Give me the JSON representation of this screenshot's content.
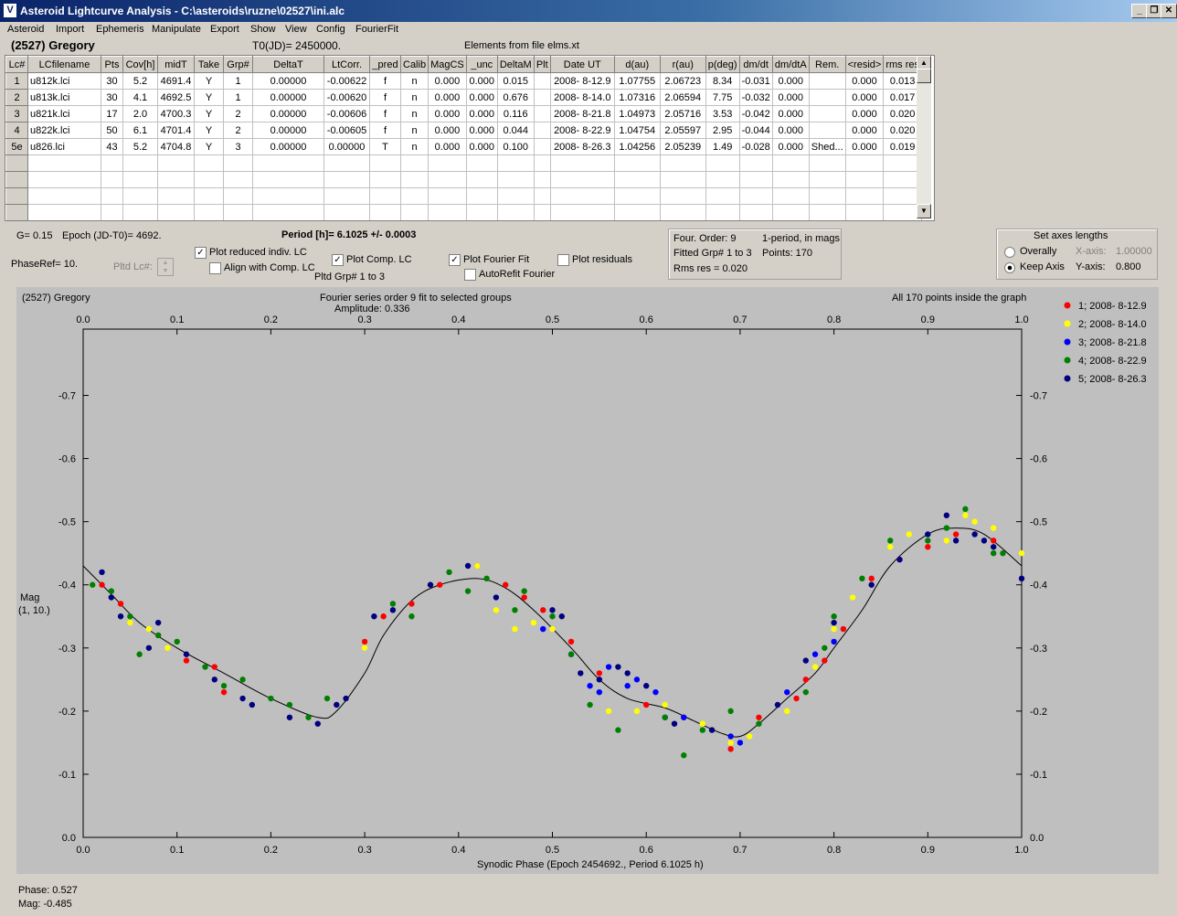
{
  "window": {
    "title": "Asteroid Lightcurve Analysis - C:\\asteroids\\ruzne\\02527\\ini.alc",
    "icon": "app-icon"
  },
  "menu": [
    "Asteroid",
    "Import",
    "Ephemeris",
    "Manipulate",
    "Export",
    "Show",
    "View",
    "Config",
    "FourierFit"
  ],
  "header": {
    "asteroid": "(2527) Gregory",
    "t0": "T0(JD)= 2450000.",
    "elements": "Elements from file elms.xt"
  },
  "table": {
    "columns": [
      "Lc#",
      "LCfilename",
      "Pts",
      "Cov[h]",
      "midT",
      "Take",
      "Grp#",
      "DeltaT",
      "LtCorr.",
      "_pred",
      "Calib",
      "MagCS",
      "_unc",
      "DeltaM",
      "Plt",
      "Date UT",
      "d(au)",
      "r(au)",
      "p(deg)",
      "dm/dt",
      "dm/dtA",
      "Rem.",
      "<resid>",
      "rms res"
    ],
    "rows": [
      [
        "1",
        "u812k.lci",
        "30",
        "5.2",
        "4691.4",
        "Y",
        "1",
        "0.00000",
        "-0.00622",
        "f",
        "n",
        "0.000",
        "0.000",
        "0.015",
        "",
        "2008- 8-12.9",
        "1.07755",
        "2.06723",
        "8.34",
        "-0.031",
        "0.000",
        "",
        "0.000",
        "0.013"
      ],
      [
        "2",
        "u813k.lci",
        "30",
        "4.1",
        "4692.5",
        "Y",
        "1",
        "0.00000",
        "-0.00620",
        "f",
        "n",
        "0.000",
        "0.000",
        "0.676",
        "",
        "2008- 8-14.0",
        "1.07316",
        "2.06594",
        "7.75",
        "-0.032",
        "0.000",
        "",
        "0.000",
        "0.017"
      ],
      [
        "3",
        "u821k.lci",
        "17",
        "2.0",
        "4700.3",
        "Y",
        "2",
        "0.00000",
        "-0.00606",
        "f",
        "n",
        "0.000",
        "0.000",
        "0.116",
        "",
        "2008- 8-21.8",
        "1.04973",
        "2.05716",
        "3.53",
        "-0.042",
        "0.000",
        "",
        "0.000",
        "0.020"
      ],
      [
        "4",
        "u822k.lci",
        "50",
        "6.1",
        "4701.4",
        "Y",
        "2",
        "0.00000",
        "-0.00605",
        "f",
        "n",
        "0.000",
        "0.000",
        "0.044",
        "",
        "2008- 8-22.9",
        "1.04754",
        "2.05597",
        "2.95",
        "-0.044",
        "0.000",
        "",
        "0.000",
        "0.020"
      ],
      [
        "5e",
        "u826.lci",
        "43",
        "5.2",
        "4704.8",
        "Y",
        "3",
        "0.00000",
        "0.00000",
        "T",
        "n",
        "0.000",
        "0.000",
        "0.100",
        "",
        "2008- 8-26.3",
        "1.04256",
        "2.05239",
        "1.49",
        "-0.028",
        "0.000",
        "Shed...",
        "0.000",
        "0.019"
      ]
    ],
    "empty_rows": 4
  },
  "controls": {
    "g": "G= 0.15",
    "epoch": "Epoch (JD-T0)= 4692.",
    "period": "Period [h]= 6.1025 +/- 0.0003",
    "phaseref": "PhaseRef= 10.",
    "pltd_lc": "Pltd Lc#:",
    "plot_reduced": "Plot reduced indiv. LC",
    "align_comp": "Align with Comp. LC",
    "plot_comp": "Plot Comp. LC",
    "pltd_grp": "Pltd Grp#  1   to   3",
    "plot_fourier": "Plot Fourier Fit",
    "autorefit": "AutoRefit Fourier",
    "plot_residuals": "Plot residuals",
    "fourier_box": {
      "order": "Four. Order:  9",
      "mode": "1-period, in mags",
      "fitted": "Fitted Grp# 1 to 3",
      "points": "Points: 170",
      "rms": "Rms res      = 0.020"
    },
    "axes_box": {
      "title": "Set axes lengths",
      "overally": "Overally",
      "keep": "Keep Axis",
      "xaxis_label": "X-axis:",
      "xaxis_val": "1.00000",
      "yaxis_label": "Y-axis:",
      "yaxis_val": "0.800"
    }
  },
  "plot_text": {
    "name": "(2527) Gregory",
    "fourier_line": "Fourier series order 9 fit to selected groups",
    "amplitude": "Amplitude: 0.336",
    "inside": "All 170 points inside the graph",
    "ylabel1": "Mag",
    "ylabel2": "(1, 10.)",
    "xlabel": "Synodic Phase (Epoch 2454692., Period 6.1025 h)"
  },
  "status": {
    "phase": "Phase:  0.527",
    "mag": "Mag:    -0.485"
  },
  "colors": {
    "g1": "#ff0000",
    "g2": "#ffff00",
    "g3": "#0000ff",
    "g4": "#008000",
    "g5": "#000080"
  },
  "chart_data": {
    "type": "scatter",
    "xlim": [
      0,
      1
    ],
    "ylim": [
      0.0,
      -0.8
    ],
    "xticks": [
      "0.0",
      "0.1",
      "0.2",
      "0.3",
      "0.4",
      "0.5",
      "0.6",
      "0.7",
      "0.8",
      "0.9",
      "1.0"
    ],
    "yticks": [
      "-0.7",
      "-0.6",
      "-0.5",
      "-0.4",
      "-0.3",
      "-0.2",
      "-0.1",
      "0.0"
    ],
    "xlabel": "Synodic Phase (Epoch 2454692., Period 6.1025 h)",
    "ylabel": "Mag",
    "legend": [
      "1; 2008- 8-12.9",
      "2; 2008- 8-14.0",
      "3; 2008- 8-21.8",
      "4; 2008- 8-22.9",
      "5; 2008- 8-26.3"
    ],
    "legend_position": "right",
    "fit_curve": [
      [
        0.0,
        -0.43
      ],
      [
        0.03,
        -0.385
      ],
      [
        0.06,
        -0.34
      ],
      [
        0.1,
        -0.3
      ],
      [
        0.15,
        -0.26
      ],
      [
        0.2,
        -0.22
      ],
      [
        0.25,
        -0.19
      ],
      [
        0.27,
        -0.2
      ],
      [
        0.3,
        -0.26
      ],
      [
        0.32,
        -0.32
      ],
      [
        0.35,
        -0.375
      ],
      [
        0.38,
        -0.4
      ],
      [
        0.42,
        -0.41
      ],
      [
        0.45,
        -0.395
      ],
      [
        0.48,
        -0.36
      ],
      [
        0.52,
        -0.3
      ],
      [
        0.55,
        -0.25
      ],
      [
        0.58,
        -0.22
      ],
      [
        0.62,
        -0.205
      ],
      [
        0.65,
        -0.185
      ],
      [
        0.68,
        -0.165
      ],
      [
        0.7,
        -0.16
      ],
      [
        0.72,
        -0.18
      ],
      [
        0.75,
        -0.22
      ],
      [
        0.78,
        -0.26
      ],
      [
        0.8,
        -0.3
      ],
      [
        0.83,
        -0.36
      ],
      [
        0.86,
        -0.43
      ],
      [
        0.9,
        -0.48
      ],
      [
        0.93,
        -0.49
      ],
      [
        0.96,
        -0.48
      ],
      [
        1.0,
        -0.43
      ]
    ],
    "series": [
      {
        "name": "1; 2008- 8-12.9",
        "color": "#ff0000",
        "points": [
          [
            0.02,
            -0.4
          ],
          [
            0.04,
            -0.37
          ],
          [
            0.08,
            -0.32
          ],
          [
            0.11,
            -0.28
          ],
          [
            0.14,
            -0.27
          ],
          [
            0.15,
            -0.23
          ],
          [
            0.3,
            -0.31
          ],
          [
            0.32,
            -0.35
          ],
          [
            0.35,
            -0.37
          ],
          [
            0.38,
            -0.4
          ],
          [
            0.42,
            -0.43
          ],
          [
            0.45,
            -0.4
          ],
          [
            0.47,
            -0.38
          ],
          [
            0.49,
            -0.36
          ],
          [
            0.52,
            -0.31
          ],
          [
            0.55,
            -0.26
          ],
          [
            0.6,
            -0.21
          ],
          [
            0.64,
            -0.19
          ],
          [
            0.69,
            -0.14
          ],
          [
            0.72,
            -0.19
          ],
          [
            0.76,
            -0.22
          ],
          [
            0.77,
            -0.25
          ],
          [
            0.79,
            -0.28
          ],
          [
            0.81,
            -0.33
          ],
          [
            0.84,
            -0.41
          ],
          [
            0.87,
            -0.44
          ],
          [
            0.9,
            -0.46
          ],
          [
            0.93,
            -0.48
          ],
          [
            0.97,
            -0.47
          ]
        ]
      },
      {
        "name": "2; 2008- 8-14.0",
        "color": "#ffff00",
        "points": [
          [
            0.01,
            -0.4
          ],
          [
            0.05,
            -0.34
          ],
          [
            0.07,
            -0.33
          ],
          [
            0.09,
            -0.3
          ],
          [
            0.3,
            -0.3
          ],
          [
            0.42,
            -0.43
          ],
          [
            0.44,
            -0.36
          ],
          [
            0.46,
            -0.33
          ],
          [
            0.48,
            -0.34
          ],
          [
            0.5,
            -0.33
          ],
          [
            0.56,
            -0.2
          ],
          [
            0.59,
            -0.2
          ],
          [
            0.62,
            -0.21
          ],
          [
            0.66,
            -0.18
          ],
          [
            0.69,
            -0.15
          ],
          [
            0.71,
            -0.16
          ],
          [
            0.75,
            -0.2
          ],
          [
            0.78,
            -0.27
          ],
          [
            0.8,
            -0.33
          ],
          [
            0.82,
            -0.38
          ],
          [
            0.86,
            -0.46
          ],
          [
            0.88,
            -0.48
          ],
          [
            0.92,
            -0.47
          ],
          [
            0.94,
            -0.51
          ],
          [
            0.95,
            -0.5
          ],
          [
            0.97,
            -0.49
          ],
          [
            1.0,
            -0.45
          ]
        ]
      },
      {
        "name": "3; 2008- 8-21.8",
        "color": "#0000ff",
        "points": [
          [
            0.49,
            -0.33
          ],
          [
            0.52,
            -0.29
          ],
          [
            0.54,
            -0.24
          ],
          [
            0.55,
            -0.23
          ],
          [
            0.56,
            -0.27
          ],
          [
            0.58,
            -0.24
          ],
          [
            0.59,
            -0.25
          ],
          [
            0.61,
            -0.23
          ],
          [
            0.62,
            -0.19
          ],
          [
            0.64,
            -0.19
          ],
          [
            0.69,
            -0.16
          ],
          [
            0.7,
            -0.15
          ],
          [
            0.75,
            -0.23
          ],
          [
            0.78,
            -0.29
          ],
          [
            0.8,
            -0.31
          ]
        ]
      },
      {
        "name": "4; 2008- 8-22.9",
        "color": "#008000",
        "points": [
          [
            0.01,
            -0.4
          ],
          [
            0.03,
            -0.39
          ],
          [
            0.05,
            -0.35
          ],
          [
            0.06,
            -0.29
          ],
          [
            0.08,
            -0.32
          ],
          [
            0.1,
            -0.31
          ],
          [
            0.13,
            -0.27
          ],
          [
            0.15,
            -0.24
          ],
          [
            0.17,
            -0.25
          ],
          [
            0.2,
            -0.22
          ],
          [
            0.22,
            -0.21
          ],
          [
            0.24,
            -0.19
          ],
          [
            0.26,
            -0.22
          ],
          [
            0.33,
            -0.37
          ],
          [
            0.35,
            -0.35
          ],
          [
            0.39,
            -0.42
          ],
          [
            0.41,
            -0.39
          ],
          [
            0.43,
            -0.41
          ],
          [
            0.46,
            -0.36
          ],
          [
            0.47,
            -0.39
          ],
          [
            0.5,
            -0.35
          ],
          [
            0.52,
            -0.29
          ],
          [
            0.54,
            -0.21
          ],
          [
            0.57,
            -0.17
          ],
          [
            0.62,
            -0.19
          ],
          [
            0.64,
            -0.13
          ],
          [
            0.66,
            -0.17
          ],
          [
            0.69,
            -0.2
          ],
          [
            0.72,
            -0.18
          ],
          [
            0.77,
            -0.23
          ],
          [
            0.79,
            -0.3
          ],
          [
            0.8,
            -0.35
          ],
          [
            0.83,
            -0.41
          ],
          [
            0.86,
            -0.47
          ],
          [
            0.9,
            -0.47
          ],
          [
            0.92,
            -0.49
          ],
          [
            0.94,
            -0.52
          ],
          [
            0.97,
            -0.45
          ],
          [
            0.98,
            -0.45
          ]
        ]
      },
      {
        "name": "5; 2008- 8-26.3",
        "color": "#000080",
        "points": [
          [
            0.02,
            -0.42
          ],
          [
            0.03,
            -0.38
          ],
          [
            0.04,
            -0.35
          ],
          [
            0.07,
            -0.3
          ],
          [
            0.08,
            -0.34
          ],
          [
            0.11,
            -0.29
          ],
          [
            0.14,
            -0.25
          ],
          [
            0.17,
            -0.22
          ],
          [
            0.18,
            -0.21
          ],
          [
            0.22,
            -0.19
          ],
          [
            0.25,
            -0.18
          ],
          [
            0.27,
            -0.21
          ],
          [
            0.28,
            -0.22
          ],
          [
            0.31,
            -0.35
          ],
          [
            0.33,
            -0.36
          ],
          [
            0.37,
            -0.4
          ],
          [
            0.41,
            -0.43
          ],
          [
            0.44,
            -0.38
          ],
          [
            0.5,
            -0.36
          ],
          [
            0.51,
            -0.35
          ],
          [
            0.53,
            -0.26
          ],
          [
            0.55,
            -0.25
          ],
          [
            0.57,
            -0.27
          ],
          [
            0.58,
            -0.26
          ],
          [
            0.6,
            -0.24
          ],
          [
            0.63,
            -0.18
          ],
          [
            0.67,
            -0.17
          ],
          [
            0.74,
            -0.21
          ],
          [
            0.77,
            -0.28
          ],
          [
            0.8,
            -0.34
          ],
          [
            0.84,
            -0.4
          ],
          [
            0.87,
            -0.44
          ],
          [
            0.9,
            -0.48
          ],
          [
            0.92,
            -0.51
          ],
          [
            0.93,
            -0.47
          ],
          [
            0.95,
            -0.48
          ],
          [
            0.96,
            -0.47
          ],
          [
            0.97,
            -0.46
          ],
          [
            1.0,
            -0.41
          ]
        ]
      }
    ]
  }
}
